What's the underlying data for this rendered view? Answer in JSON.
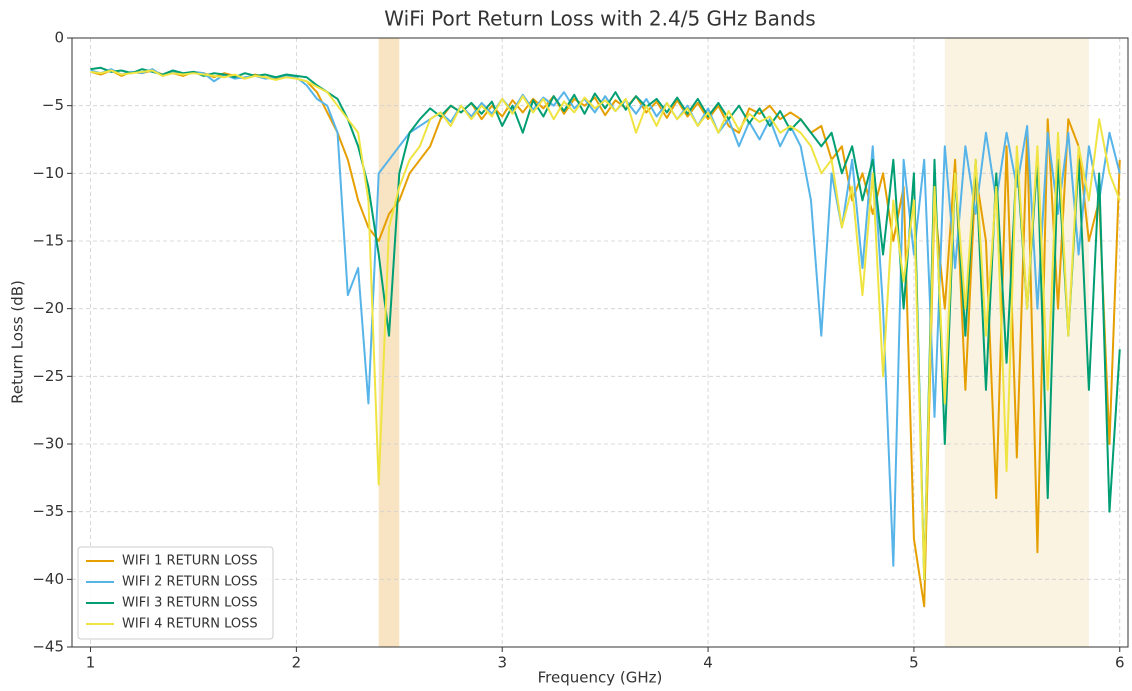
{
  "chart_data": {
    "type": "line",
    "title": "WiFi Port Return Loss with 2.4/5 GHz Bands",
    "xlabel": "Frequency (GHz)",
    "ylabel": "Return Loss (dB)",
    "xlim": [
      0.91,
      6.04
    ],
    "ylim": [
      -45,
      0
    ],
    "xticks": [
      1,
      2,
      3,
      4,
      5,
      6
    ],
    "yticks": [
      0,
      {
        "value": -5,
        "label": "−5"
      },
      {
        "value": -10,
        "label": "−10"
      },
      {
        "value": -15,
        "label": "−15"
      },
      {
        "value": -20,
        "label": "−20"
      },
      {
        "value": -25,
        "label": "−25"
      },
      {
        "value": -30,
        "label": "−30"
      },
      {
        "value": -35,
        "label": "−35"
      },
      {
        "value": -40,
        "label": "−40"
      },
      {
        "value": -45,
        "label": "−45"
      }
    ],
    "grid": true,
    "legend": "lower left",
    "bands": [
      {
        "start": 2.4,
        "end": 2.5,
        "color": "#f8e4c2"
      },
      {
        "start": 5.15,
        "end": 5.85,
        "color": "#faf3e1"
      }
    ],
    "x": [
      1.0,
      1.05,
      1.1,
      1.15,
      1.2,
      1.25,
      1.3,
      1.35,
      1.4,
      1.45,
      1.5,
      1.55,
      1.6,
      1.65,
      1.7,
      1.75,
      1.8,
      1.85,
      1.9,
      1.95,
      2.0,
      2.05,
      2.1,
      2.15,
      2.2,
      2.25,
      2.3,
      2.35,
      2.4,
      2.45,
      2.5,
      2.55,
      2.6,
      2.65,
      2.7,
      2.75,
      2.8,
      2.85,
      2.9,
      2.95,
      3.0,
      3.05,
      3.1,
      3.15,
      3.2,
      3.25,
      3.3,
      3.35,
      3.4,
      3.45,
      3.5,
      3.55,
      3.6,
      3.65,
      3.7,
      3.75,
      3.8,
      3.85,
      3.9,
      3.95,
      4.0,
      4.05,
      4.1,
      4.15,
      4.2,
      4.25,
      4.3,
      4.35,
      4.4,
      4.45,
      4.5,
      4.55,
      4.6,
      4.65,
      4.7,
      4.75,
      4.8,
      4.85,
      4.9,
      4.95,
      5.0,
      5.05,
      5.1,
      5.15,
      5.2,
      5.25,
      5.3,
      5.35,
      5.4,
      5.45,
      5.5,
      5.55,
      5.6,
      5.65,
      5.7,
      5.75,
      5.8,
      5.85,
      5.9,
      5.95,
      6.0
    ],
    "series": [
      {
        "name": "WIFI 1 RETURN LOSS",
        "color": "#E69F00",
        "values": [
          -2.5,
          -2.7,
          -2.4,
          -2.8,
          -2.5,
          -2.6,
          -2.4,
          -2.7,
          -2.6,
          -2.8,
          -2.5,
          -2.6,
          -2.9,
          -2.6,
          -2.8,
          -3.0,
          -2.7,
          -2.9,
          -3.0,
          -2.8,
          -3.0,
          -3.2,
          -4.0,
          -5.5,
          -7.0,
          -9.0,
          -12.0,
          -14.0,
          -15.0,
          -13.0,
          -12.0,
          -10.0,
          -9.0,
          -8.0,
          -6.0,
          -5.0,
          -5.5,
          -4.8,
          -6.0,
          -5.0,
          -5.8,
          -4.6,
          -5.5,
          -4.5,
          -5.2,
          -4.3,
          -5.6,
          -4.5,
          -5.0,
          -4.4,
          -5.7,
          -4.6,
          -5.2,
          -4.3,
          -5.5,
          -4.7,
          -5.9,
          -4.6,
          -5.8,
          -4.8,
          -6.0,
          -5.0,
          -6.5,
          -7.0,
          -5.2,
          -5.6,
          -5.0,
          -6.0,
          -5.5,
          -6.0,
          -7.0,
          -6.5,
          -9.0,
          -8.0,
          -12.0,
          -10.0,
          -13.0,
          -10.0,
          -15.0,
          -11.0,
          -37,
          -42,
          -12,
          -20,
          -9,
          -26,
          -10,
          -15,
          -34,
          -8,
          -31,
          -7,
          -38,
          -6,
          -20,
          -6,
          -8,
          -15,
          -12,
          -30,
          -9
        ]
      },
      {
        "name": "WIFI 2 RETURN LOSS",
        "color": "#56B4E9",
        "values": [
          -2.4,
          -2.6,
          -2.3,
          -2.7,
          -2.5,
          -2.6,
          -2.3,
          -2.8,
          -2.5,
          -2.7,
          -2.5,
          -2.6,
          -3.2,
          -2.7,
          -3.0,
          -2.9,
          -2.8,
          -3.0,
          -2.9,
          -2.8,
          -2.9,
          -3.5,
          -4.5,
          -5.0,
          -7.0,
          -19.0,
          -17.0,
          -27.0,
          -10.0,
          -9.0,
          -8.0,
          -7.0,
          -6.5,
          -6.0,
          -5.5,
          -6.2,
          -5.0,
          -5.8,
          -4.8,
          -5.6,
          -4.5,
          -5.4,
          -4.2,
          -5.3,
          -4.4,
          -5.0,
          -4.0,
          -5.2,
          -4.5,
          -5.5,
          -4.3,
          -5.4,
          -4.6,
          -5.6,
          -4.5,
          -5.8,
          -4.8,
          -6.0,
          -5.0,
          -6.5,
          -5.2,
          -7.0,
          -6.0,
          -8.0,
          -6.2,
          -7.5,
          -6.0,
          -8.0,
          -6.5,
          -8,
          -12,
          -22,
          -10,
          -14,
          -9,
          -17,
          -8,
          -20,
          -39,
          -9,
          -16,
          -9,
          -28,
          -8,
          -17,
          -8,
          -13,
          -7,
          -12,
          -7,
          -11,
          -6.5,
          -20,
          -7,
          -13,
          -7,
          -16,
          -8,
          -12,
          -7,
          -10
        ]
      },
      {
        "name": "WIFI 3 RETURN LOSS",
        "color": "#009E73",
        "values": [
          -2.3,
          -2.2,
          -2.5,
          -2.4,
          -2.6,
          -2.3,
          -2.5,
          -2.7,
          -2.4,
          -2.6,
          -2.5,
          -2.8,
          -2.6,
          -2.7,
          -2.9,
          -2.6,
          -2.8,
          -2.7,
          -2.9,
          -2.7,
          -2.8,
          -2.9,
          -3.5,
          -4.0,
          -4.5,
          -6.0,
          -8.0,
          -11.0,
          -16.0,
          -22.0,
          -10.0,
          -7.0,
          -6.0,
          -5.2,
          -5.8,
          -5.0,
          -5.5,
          -4.8,
          -5.6,
          -4.7,
          -6.5,
          -5.0,
          -7.0,
          -4.6,
          -5.8,
          -4.3,
          -5.4,
          -4.2,
          -5.6,
          -4.1,
          -5.2,
          -4.0,
          -5.3,
          -4.3,
          -5.1,
          -4.5,
          -5.5,
          -4.4,
          -5.6,
          -4.5,
          -5.8,
          -4.8,
          -6.0,
          -5.0,
          -6.3,
          -5.2,
          -6.5,
          -5.4,
          -6.8,
          -6.0,
          -7.0,
          -8.0,
          -7.0,
          -10.0,
          -8.0,
          -12.0,
          -9.0,
          -16.0,
          -9.0,
          -20.0,
          -10,
          -40,
          -9,
          -30,
          -10,
          -22,
          -9,
          -26,
          -10,
          -24,
          -9,
          -20,
          -9,
          -34,
          -9,
          -22,
          -9,
          -26,
          -10,
          -35,
          -23
        ]
      },
      {
        "name": "WIFI 4 RETURN LOSS",
        "color": "#F0E442",
        "values": [
          -2.5,
          -2.6,
          -2.4,
          -2.7,
          -2.6,
          -2.5,
          -2.4,
          -2.8,
          -2.6,
          -2.7,
          -2.6,
          -2.7,
          -2.8,
          -2.9,
          -2.7,
          -3.0,
          -2.8,
          -2.9,
          -3.1,
          -2.9,
          -3.0,
          -3.2,
          -3.6,
          -4.0,
          -5.0,
          -6.0,
          -7.0,
          -12.0,
          -33.0,
          -14.0,
          -11.0,
          -9.0,
          -8.0,
          -6.0,
          -5.5,
          -6.5,
          -5.0,
          -6.0,
          -5.0,
          -5.8,
          -4.5,
          -5.6,
          -4.3,
          -5.5,
          -4.5,
          -6.0,
          -4.7,
          -5.5,
          -4.4,
          -5.2,
          -4.6,
          -5.4,
          -4.5,
          -7.0,
          -5.0,
          -6.5,
          -4.8,
          -6.0,
          -5.2,
          -6.5,
          -5.5,
          -7.0,
          -5.4,
          -6.8,
          -5.6,
          -6.2,
          -5.8,
          -7.0,
          -6.5,
          -7,
          -8,
          -10,
          -9,
          -14,
          -11,
          -19,
          -10,
          -25,
          -12,
          -18,
          -12,
          -40,
          -11,
          -27,
          -10,
          -20,
          -9,
          -22,
          -11,
          -32,
          -8,
          -20,
          -8,
          -26,
          -7,
          -22,
          -8,
          -12,
          -6,
          -10,
          -12
        ]
      }
    ]
  }
}
